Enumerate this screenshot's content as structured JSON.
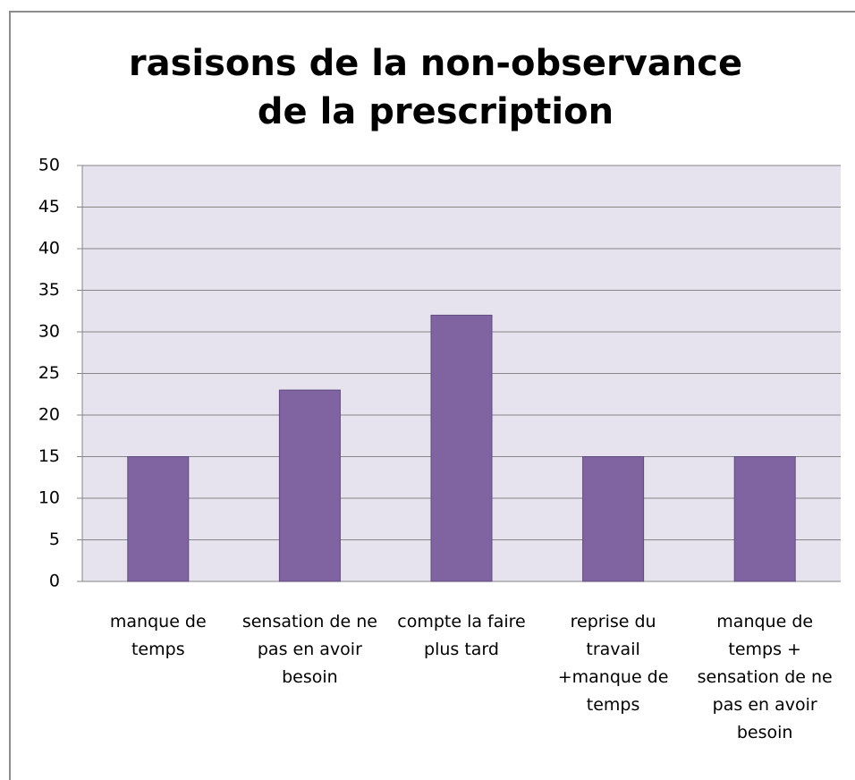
{
  "chart_data": {
    "type": "bar",
    "title": "rasisons de la non-observance de la prescription",
    "categories": [
      "manque de temps",
      "sensation de ne pas en avoir besoin",
      "compte la faire plus tard",
      "reprise du travail +manque de temps",
      "manque de temps + sensation de ne pas en avoir besoin"
    ],
    "values": [
      15,
      23,
      32,
      15,
      15
    ],
    "color": "#8064a2",
    "ylim": [
      0,
      50
    ],
    "yticks": [
      0,
      5,
      10,
      15,
      20,
      25,
      30,
      35,
      40,
      45,
      50
    ],
    "grid": true
  }
}
